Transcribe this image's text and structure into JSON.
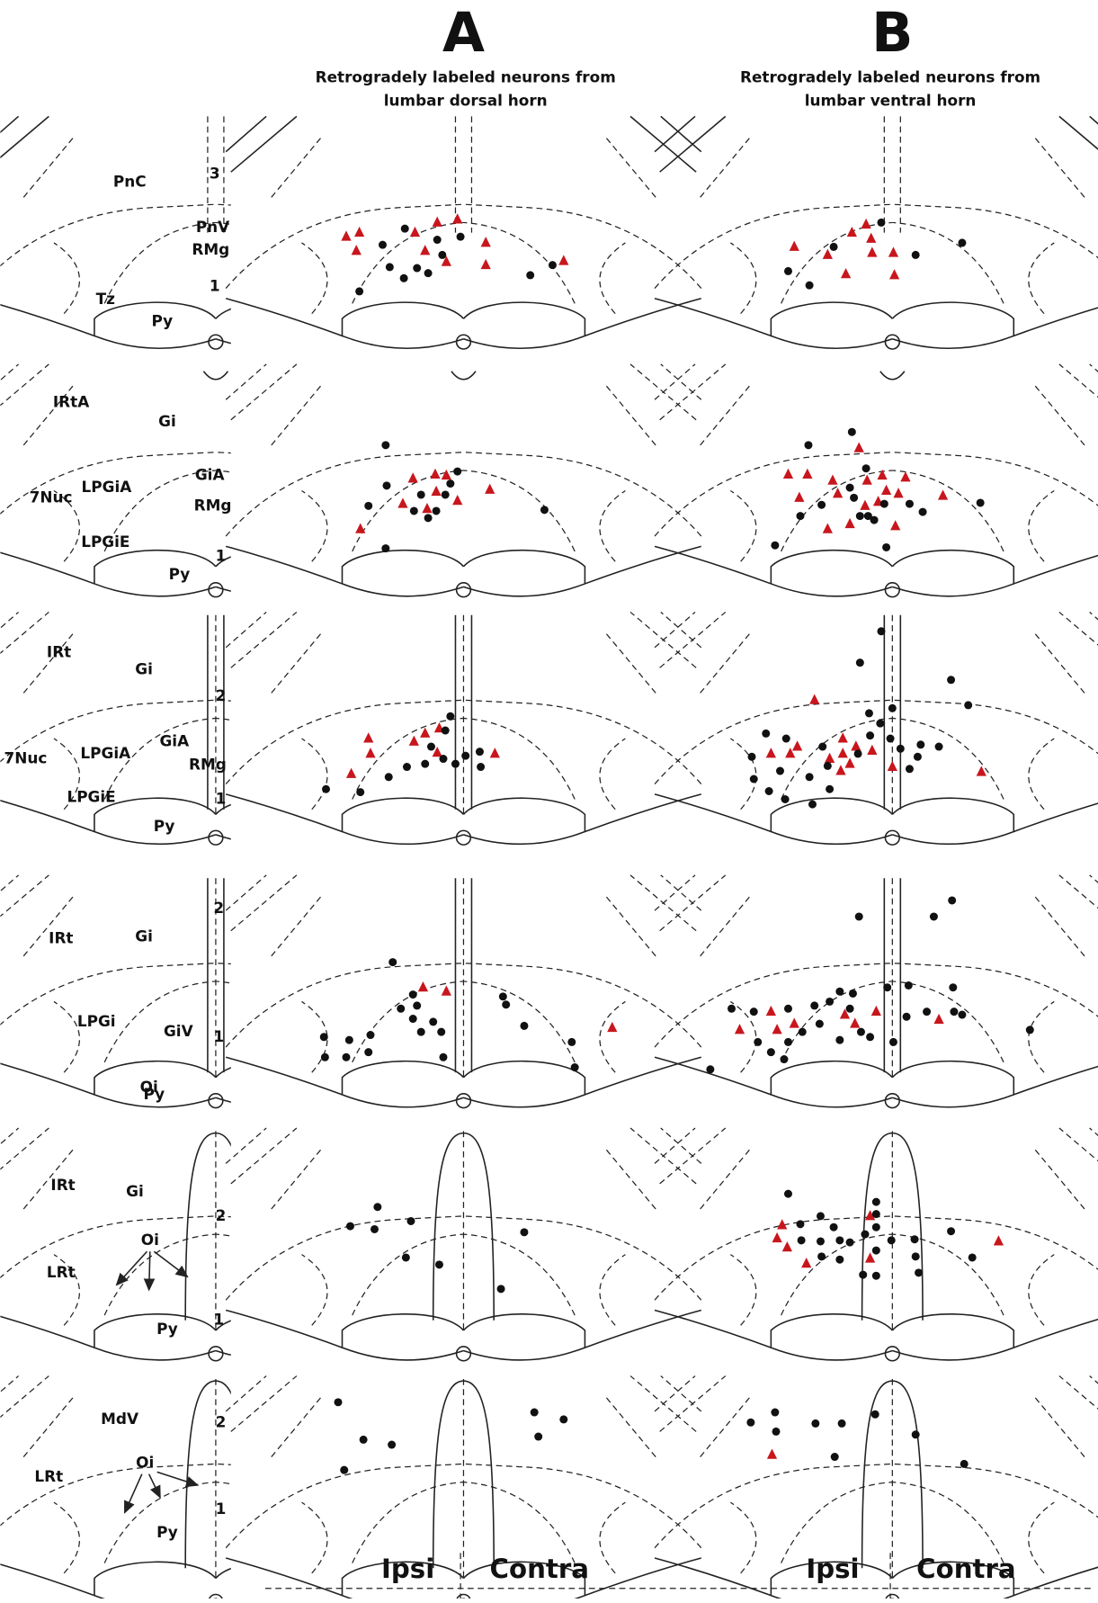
{
  "header": {
    "panel_a": "A",
    "panel_b": "B",
    "caption_a": [
      "Retrogradely labeled neurons from",
      "lumbar dorsal horn"
    ],
    "caption_b": [
      "Retrogradely labeled neurons from",
      "lumbar ventral horn"
    ]
  },
  "sections": [
    {
      "labels": [
        "PnC",
        "3",
        "PnV",
        "RMg",
        "1",
        "Tz",
        "Py"
      ]
    },
    {
      "labels": [
        "IRtA",
        "Gi",
        "7Nuc",
        "LPGiA",
        "GiA",
        "RMg",
        "LPGiE",
        "1",
        "Py"
      ]
    },
    {
      "labels": [
        "IRt",
        "Gi",
        "2",
        "7Nuc",
        "LPGiA",
        "GiA",
        "RMg",
        "LPGiE",
        "1",
        "Py"
      ]
    },
    {
      "labels": [
        "2",
        "IRt",
        "Gi",
        "GiV",
        "LPGi",
        "1",
        "Oi",
        "Py"
      ]
    },
    {
      "labels": [
        "IRt",
        "Gi",
        "Oi",
        "2",
        "LRt",
        "1",
        "Py"
      ]
    },
    {
      "labels": [
        "MdV",
        "2",
        "Oi",
        "LRt",
        "1",
        "Py"
      ]
    }
  ],
  "footer": {
    "ipsi_a": "Ipsi",
    "contra_a": "Contra",
    "ipsi_b": "Ipsi",
    "contra_b": "Contra"
  }
}
